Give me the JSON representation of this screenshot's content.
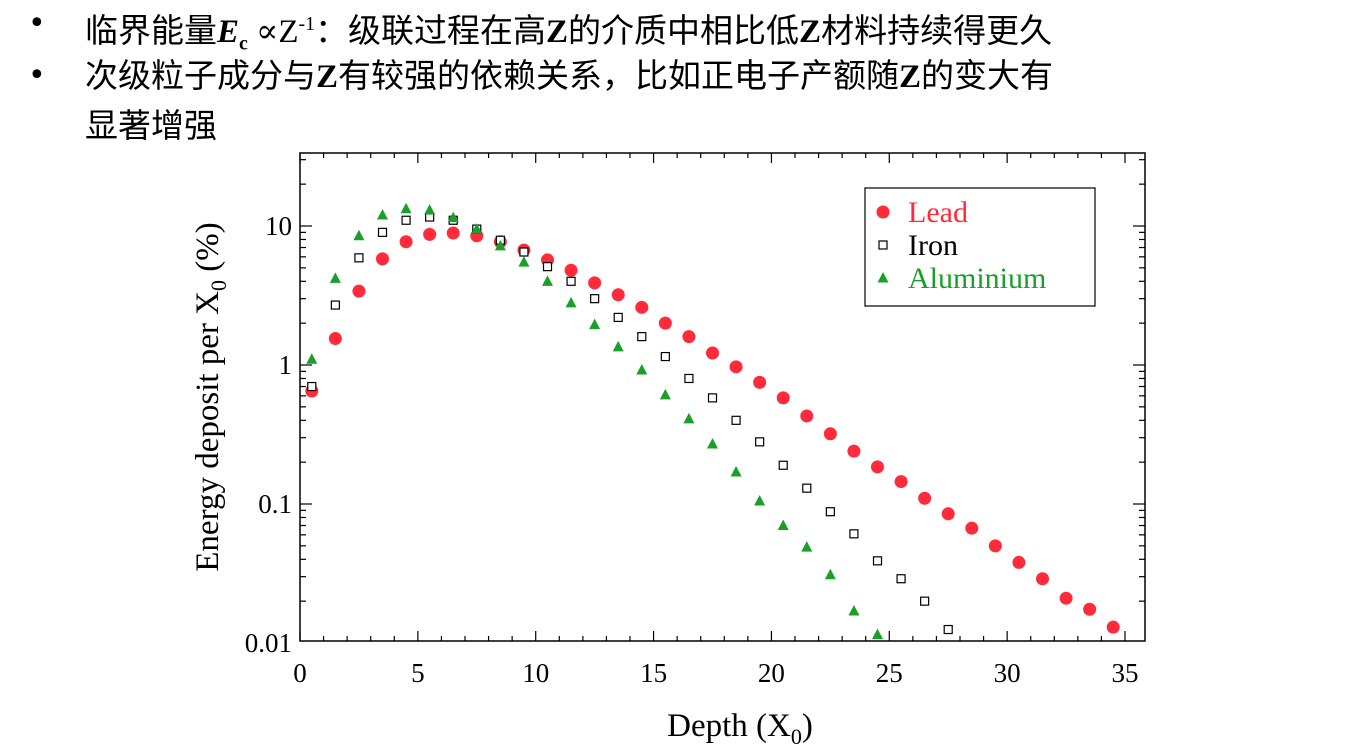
{
  "bullets": [
    {
      "prefix": "临界能量",
      "symbol": "E",
      "symbol_sub": "c",
      "prop": " ∝Z",
      "prop_sup": "-1",
      "suffix": "：级联过程在高",
      "z1": "Z",
      "suffix2": "的介质中相比低",
      "z2": "Z",
      "suffix3": "材料持续得更久"
    },
    {
      "part1": "次级粒子成分与",
      "z1": "Z",
      "part2": "有较强的依赖关系，比如正电子产额随",
      "z2": "Z",
      "part3": "的变大有",
      "line2": "显著增强"
    }
  ],
  "chart_data": {
    "type": "scatter",
    "xlabel": "Depth (X",
    "xlabel_sub": "0",
    "xlabel_end": ")",
    "ylabel": "Energy deposit per X",
    "ylabel_sub": "0",
    "ylabel_end": " (%)",
    "xlim": [
      0,
      35
    ],
    "ylim": [
      0.01,
      20
    ],
    "yscale": "log",
    "xticks": [
      "0",
      "5",
      "10",
      "15",
      "20",
      "25",
      "30",
      "35"
    ],
    "yticks": [
      "0.01",
      "0.1",
      "1",
      "10"
    ],
    "legend_position": "top-right",
    "series": [
      {
        "name": "Lead",
        "marker": "circle",
        "color": "#ff2a3a",
        "x": [
          0.5,
          1.5,
          2.5,
          3.5,
          4.5,
          5.5,
          6.5,
          7.5,
          8.5,
          9.5,
          10.5,
          11.5,
          12.5,
          13.5,
          14.5,
          15.5,
          16.5,
          17.5,
          18.5,
          19.5,
          20.5,
          21.5,
          22.5,
          23.5,
          24.5,
          25.5,
          26.5,
          27.5,
          28.5,
          29.5,
          30.5,
          31.5,
          32.5,
          33.5,
          34.5
        ],
        "y": [
          0.65,
          1.55,
          3.4,
          5.8,
          7.7,
          8.7,
          8.9,
          8.5,
          7.7,
          6.7,
          5.7,
          4.8,
          3.9,
          3.2,
          2.6,
          2.0,
          1.6,
          1.22,
          0.97,
          0.75,
          0.58,
          0.43,
          0.32,
          0.24,
          0.185,
          0.145,
          0.11,
          0.085,
          0.067,
          0.05,
          0.038,
          0.029,
          0.021,
          0.0175,
          0.013
        ]
      },
      {
        "name": "Iron",
        "marker": "open-square",
        "color": "#000000",
        "x": [
          0.5,
          1.5,
          2.5,
          3.5,
          4.5,
          5.5,
          6.5,
          7.5,
          8.5,
          9.5,
          10.5,
          11.5,
          12.5,
          13.5,
          14.5,
          15.5,
          16.5,
          17.5,
          18.5,
          19.5,
          20.5,
          21.5,
          22.5,
          23.5,
          24.5,
          25.5,
          26.5,
          27.5
        ],
        "y": [
          0.7,
          2.7,
          5.9,
          9.0,
          11.0,
          11.6,
          11.0,
          9.5,
          7.9,
          6.5,
          5.1,
          4.0,
          3.0,
          2.2,
          1.6,
          1.15,
          0.8,
          0.58,
          0.4,
          0.28,
          0.19,
          0.13,
          0.088,
          0.061,
          0.039,
          0.029,
          0.02,
          0.0125
        ]
      },
      {
        "name": "Aluminium",
        "marker": "triangle",
        "color": "#1aa02a",
        "x": [
          0.5,
          1.5,
          2.5,
          3.5,
          4.5,
          5.5,
          6.5,
          7.5,
          8.5,
          9.5,
          10.5,
          11.5,
          12.5,
          13.5,
          14.5,
          15.5,
          16.5,
          17.5,
          18.5,
          19.5,
          20.5,
          21.5,
          22.5,
          23.5,
          24.5
        ],
        "y": [
          1.1,
          4.2,
          8.5,
          12.0,
          13.3,
          13.0,
          11.5,
          9.5,
          7.2,
          5.5,
          4.0,
          2.8,
          1.95,
          1.35,
          0.92,
          0.61,
          0.41,
          0.27,
          0.17,
          0.105,
          0.07,
          0.049,
          0.031,
          0.017,
          0.0115
        ]
      }
    ]
  }
}
